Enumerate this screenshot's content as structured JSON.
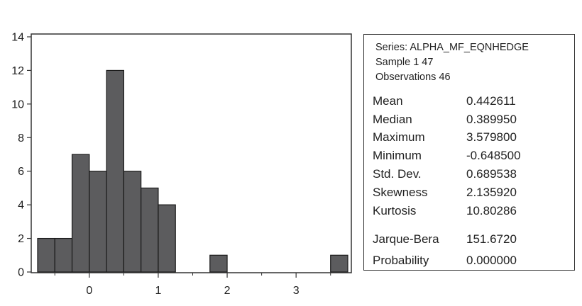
{
  "chart_data": {
    "type": "bar",
    "bins": [
      {
        "start": -0.75,
        "end": -0.5,
        "count": 2
      },
      {
        "start": -0.5,
        "end": -0.25,
        "count": 2
      },
      {
        "start": -0.25,
        "end": 0.0,
        "count": 7
      },
      {
        "start": 0.0,
        "end": 0.25,
        "count": 6
      },
      {
        "start": 0.25,
        "end": 0.5,
        "count": 12
      },
      {
        "start": 0.5,
        "end": 0.75,
        "count": 6
      },
      {
        "start": 0.75,
        "end": 1.0,
        "count": 5
      },
      {
        "start": 1.0,
        "end": 1.25,
        "count": 4
      },
      {
        "start": 1.75,
        "end": 2.0,
        "count": 1
      },
      {
        "start": 3.5,
        "end": 3.75,
        "count": 1
      }
    ],
    "xlim": [
      -0.75,
      3.75
    ],
    "ylim": [
      0,
      14
    ],
    "x_ticks": [
      0,
      1,
      2,
      3
    ],
    "y_ticks": [
      0,
      2,
      4,
      6,
      8,
      10,
      12,
      14
    ],
    "bar_color": "#5c5c5e",
    "xlabel": "",
    "ylabel": "",
    "title": ""
  },
  "stats": {
    "series": "Series: ALPHA_MF_EQNHEDGE",
    "sample": "Sample 1 47",
    "observations": "Observations 46",
    "rows": [
      {
        "label": "Mean",
        "value": "0.442611"
      },
      {
        "label": "Median",
        "value": "0.389950"
      },
      {
        "label": "Maximum",
        "value": "3.579800"
      },
      {
        "label": "Minimum",
        "value": "-0.648500"
      },
      {
        "label": "Std. Dev.",
        "value": "0.689538"
      },
      {
        "label": "Skewness",
        "value": "2.135920"
      },
      {
        "label": "Kurtosis",
        "value": "10.80286"
      },
      {
        "label": "Jarque-Bera",
        "value": "151.6720"
      },
      {
        "label": "Probability",
        "value": "0.000000"
      }
    ]
  }
}
